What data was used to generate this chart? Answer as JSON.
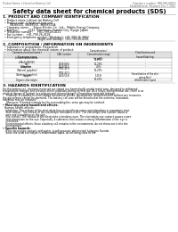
{
  "header_left": "Product Name: Lithium Ion Battery Cell",
  "header_right_line1": "Substance number: FBR-049-00010",
  "header_right_line2": "Establishment / Revision: Dec.7.2010",
  "title": "Safety data sheet for chemical products (SDS)",
  "section1_title": "1. PRODUCT AND COMPANY IDENTIFICATION",
  "section1_lines": [
    "  • Product name: Lithium Ion Battery Cell",
    "  • Product code: Cylindrical-type cell",
    "        SN-B8500, SN-B8500, SN-B8500A",
    "  • Company name:     Sanyo Electric Co., Ltd.,  Mobile Energy Company",
    "  • Address:           2221  Kamimura, Sumoto City, Hyogo, Japan",
    "  • Telephone number:     +81-799-26-4111",
    "  • Fax number:   +81-799-26-4128",
    "  • Emergency telephone number (Weekday): +81-799-26-3662",
    "                                       (Night and holiday): +81-799-26-4101"
  ],
  "section2_title": "2. COMPOSITION / INFORMATION ON INGREDIENTS",
  "section2_lines": [
    "  • Substance or preparation: Preparation",
    "  • Information about the chemical nature of product:"
  ],
  "table_headers": [
    "Common chemical name /\nSynonyms name",
    "CAS number",
    "Concentration /\nConcentration range\n(in wt%)",
    "Classification and\nhazard labeling"
  ],
  "table_rows": [
    [
      "Lithium metal oxide\n(LiMnCo(NiO2))",
      "-",
      "30-60%",
      "-"
    ],
    [
      "Iron",
      "7439-89-6",
      "15-25%",
      "-"
    ],
    [
      "Aluminum",
      "7429-90-5",
      "2-6%",
      "-"
    ],
    [
      "Graphite\n(Natural graphite)\n(Artificial graphite)",
      "7782-42-5\n7782-42-5",
      "10-20%",
      "-"
    ],
    [
      "Copper",
      "7440-50-8",
      "5-15%",
      "Sensitization of the skin\ngroup No.2"
    ],
    [
      "Organic electrolyte",
      "-",
      "10-20%",
      "Inflammable liquid"
    ]
  ],
  "row_heights": [
    5.0,
    3.2,
    3.2,
    6.0,
    5.5,
    3.2
  ],
  "section3_title": "3. HAZARDS IDENTIFICATION",
  "section3_para1": "For the battery cell, chemical materials are stored in a hermetically sealed metal case, designed to withstand",
  "section3_para2": "temperature changes and pressure-shock conditions during normal use. As a result, during normal use, there is no",
  "section3_para3": "physical danger of ignition or explosion and thermal danger of hazardous materials leakage.",
  "section3_para4": "     However, if exposed to a fire, added mechanical shocks, decomposed, shorted electric without any measures,",
  "section3_para5": "the gas release cannot be operated. The battery cell case will be breached at fire-extreme, hazardous",
  "section3_para6": "materials may be released.",
  "section3_para7": "     Moreover, if heated strongly by the surrounding fire, some gas may be emitted.",
  "section3_bullet1": "• Most important hazard and effects:",
  "section3_human": "Human health effects:",
  "section3_inhal1": "    Inhalation: The release of the electrolyte has an anesthesia action and stimulates in respiratory tract.",
  "section3_skin1": "    Skin contact: The release of the electrolyte stimulates a skin. The electrolyte skin contact causes a",
  "section3_skin2": "    sore and stimulation on the skin.",
  "section3_eye1": "    Eye contact: The release of the electrolyte stimulates eyes. The electrolyte eye contact causes a sore",
  "section3_eye2": "    and stimulation on the eye. Especially, a substance that causes a strong inflammation of the eye is",
  "section3_eye3": "    contained.",
  "section3_env1": "    Environmental effects: Since a battery cell remains in the environment, do not throw out it into the",
  "section3_env2": "    environment.",
  "section3_bullet2": "• Specific hazards:",
  "section3_spec1": "    If the electrolyte contacts with water, it will generate detrimental hydrogen fluoride.",
  "section3_spec2": "    Since the used electrolyte is inflammable liquid, do not bring close to fire.",
  "bg_color": "#ffffff",
  "text_color": "#000000",
  "header_color": "#666666",
  "line_color": "#aaaaaa",
  "table_border_color": "#999999",
  "table_header_bg": "#e0e0e0"
}
